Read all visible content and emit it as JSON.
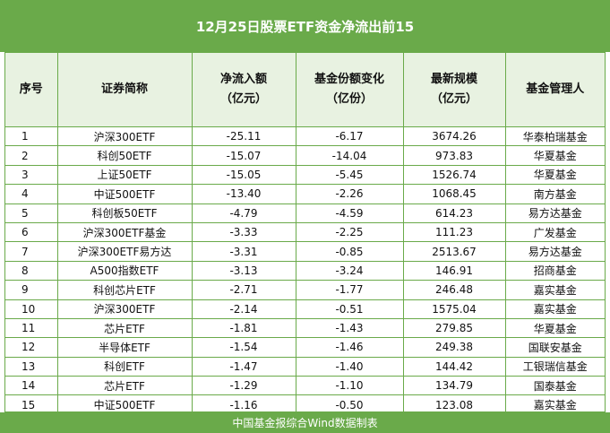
{
  "title": "12月25日股票ETF资金净流出前15",
  "headers": {
    "idx": "序号",
    "name": "证券简称",
    "flow_line1": "净流入额",
    "flow_line2": "（亿元）",
    "share_line1": "基金份额变化",
    "share_line2": "（亿份）",
    "scale_line1": "最新规模",
    "scale_line2": "（亿元）",
    "manager": "基金管理人"
  },
  "rows": [
    {
      "idx": "1",
      "name": "沪深300ETF",
      "flow": "-25.11",
      "share": "-6.17",
      "scale": "3674.26",
      "manager": "华泰柏瑞基金"
    },
    {
      "idx": "2",
      "name": "科创50ETF",
      "flow": "-15.07",
      "share": "-14.04",
      "scale": "973.83",
      "manager": "华夏基金"
    },
    {
      "idx": "3",
      "name": "上证50ETF",
      "flow": "-15.05",
      "share": "-5.45",
      "scale": "1526.74",
      "manager": "华夏基金"
    },
    {
      "idx": "4",
      "name": "中证500ETF",
      "flow": "-13.40",
      "share": "-2.26",
      "scale": "1068.45",
      "manager": "南方基金"
    },
    {
      "idx": "5",
      "name": "科创板50ETF",
      "flow": "-4.79",
      "share": "-4.59",
      "scale": "614.23",
      "manager": "易方达基金"
    },
    {
      "idx": "6",
      "name": "沪深300ETF基金",
      "flow": "-3.33",
      "share": "-2.25",
      "scale": "111.23",
      "manager": "广发基金"
    },
    {
      "idx": "7",
      "name": "沪深300ETF易方达",
      "flow": "-3.31",
      "share": "-0.85",
      "scale": "2513.67",
      "manager": "易方达基金"
    },
    {
      "idx": "8",
      "name": "A500指数ETF",
      "flow": "-3.13",
      "share": "-3.24",
      "scale": "146.91",
      "manager": "招商基金"
    },
    {
      "idx": "9",
      "name": "科创芯片ETF",
      "flow": "-2.71",
      "share": "-1.77",
      "scale": "246.48",
      "manager": "嘉实基金"
    },
    {
      "idx": "10",
      "name": "沪深300ETF",
      "flow": "-2.14",
      "share": "-0.51",
      "scale": "1575.04",
      "manager": "嘉实基金"
    },
    {
      "idx": "11",
      "name": "芯片ETF",
      "flow": "-1.81",
      "share": "-1.43",
      "scale": "279.85",
      "manager": "华夏基金"
    },
    {
      "idx": "12",
      "name": "半导体ETF",
      "flow": "-1.54",
      "share": "-1.46",
      "scale": "249.38",
      "manager": "国联安基金"
    },
    {
      "idx": "13",
      "name": "科创ETF",
      "flow": "-1.47",
      "share": "-1.40",
      "scale": "144.42",
      "manager": "工银瑞信基金"
    },
    {
      "idx": "14",
      "name": "芯片ETF",
      "flow": "-1.29",
      "share": "-1.10",
      "scale": "134.79",
      "manager": "国泰基金"
    },
    {
      "idx": "15",
      "name": "中证500ETF",
      "flow": "-1.16",
      "share": "-0.50",
      "scale": "123.08",
      "manager": "嘉实基金"
    }
  ],
  "footer": "中国基金报综合Wind数据制表",
  "colors": {
    "brand_green": "#6aaa4a",
    "header_bg": "#e8f2e1"
  }
}
